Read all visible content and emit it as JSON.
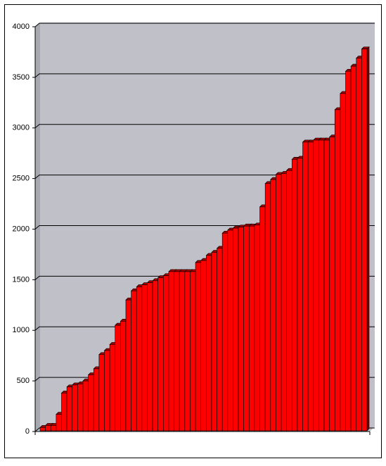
{
  "chart_data": {
    "type": "bar3d",
    "values": [
      40,
      60,
      60,
      170,
      380,
      440,
      460,
      470,
      500,
      560,
      620,
      760,
      800,
      860,
      1050,
      1090,
      1300,
      1390,
      1430,
      1450,
      1470,
      1490,
      1520,
      1540,
      1580,
      1580,
      1580,
      1580,
      1580,
      1670,
      1690,
      1740,
      1770,
      1810,
      1960,
      1990,
      2010,
      2020,
      2030,
      2030,
      2040,
      2220,
      2450,
      2490,
      2540,
      2550,
      2580,
      2690,
      2700,
      2860,
      2860,
      2880,
      2880,
      2880,
      2910,
      3180,
      3340,
      3560,
      3610,
      3690,
      3780
    ],
    "color": "#ff0000",
    "ylim": [
      0,
      4000
    ],
    "yticks": [
      0,
      500,
      1000,
      1500,
      2000,
      2500,
      3000,
      3500,
      4000
    ],
    "grid": true
  }
}
